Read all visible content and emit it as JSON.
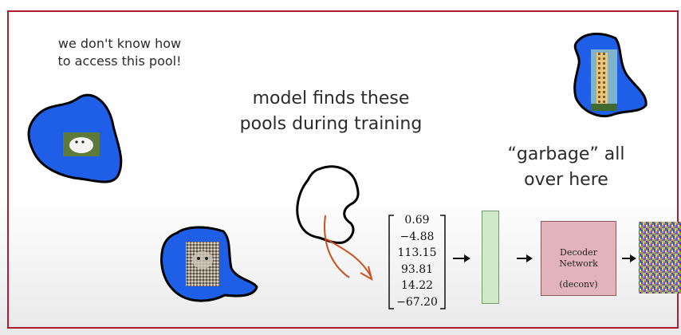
{
  "texts": {
    "note_line1": "we don't know how",
    "note_line2": "to access this pool!",
    "headline_line1": "model finds these",
    "headline_line2": "pools during training",
    "garbage_line1": "“garbage” all",
    "garbage_line2": "over here"
  },
  "vector": [
    "0.69",
    "−4.88",
    "113.15",
    "93.81",
    "14.22",
    "−67.20"
  ],
  "decoder": {
    "line1": "Decoder",
    "line2": "Network",
    "line3": "(deconv)"
  },
  "colors": {
    "pool_blue": "#1f5fe8",
    "frame_red": "#b01b2e",
    "latent_green": "#cfe9c9",
    "decoder_pink": "#e3b3bb",
    "sketch_orange": "#c8521e"
  },
  "icons": [
    "dog-image",
    "cat-image",
    "giraffe-image",
    "noise-image"
  ]
}
